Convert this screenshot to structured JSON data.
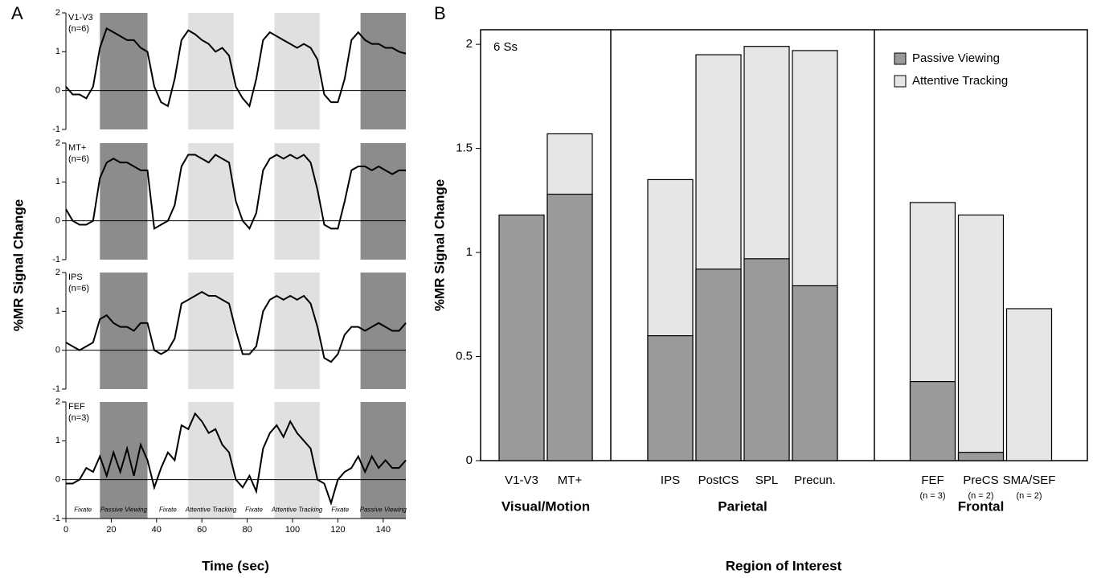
{
  "chart_data": [
    {
      "type": "line",
      "panel_label": "A",
      "xlabel": "Time (sec)",
      "ylabel": "%MR Signal Change",
      "color": "#000000",
      "x": [
        0,
        3,
        6,
        9,
        12,
        15,
        18,
        21,
        24,
        27,
        30,
        33,
        36,
        39,
        42,
        45,
        48,
        51,
        54,
        57,
        60,
        63,
        66,
        69,
        72,
        75,
        78,
        81,
        84,
        87,
        90,
        93,
        96,
        99,
        102,
        105,
        108,
        111,
        114,
        117,
        120,
        123,
        126,
        129,
        132,
        135,
        138,
        141,
        144,
        147,
        150
      ],
      "xlim": [
        0,
        150
      ],
      "xticks": [
        0,
        20,
        40,
        60,
        80,
        100,
        120,
        140
      ],
      "ylim": [
        -1,
        2
      ],
      "yticks": [
        -1,
        0,
        1,
        2
      ],
      "epochs": [
        {
          "start": 0,
          "end": 15,
          "label": "Fixate",
          "shade": null
        },
        {
          "start": 15,
          "end": 36,
          "label": "Passive Viewing",
          "shade": "#8c8c8c"
        },
        {
          "start": 36,
          "end": 54,
          "label": "Fixate",
          "shade": null
        },
        {
          "start": 54,
          "end": 74,
          "label": "Attentive Tracking",
          "shade": "#e0e0e0"
        },
        {
          "start": 74,
          "end": 92,
          "label": "Fixate",
          "shade": null
        },
        {
          "start": 92,
          "end": 112,
          "label": "Attentive Tracking",
          "shade": "#e0e0e0"
        },
        {
          "start": 112,
          "end": 130,
          "label": "Fixate",
          "shade": null
        },
        {
          "start": 130,
          "end": 150,
          "label": "Passive Viewing",
          "shade": "#8c8c8c"
        }
      ],
      "panels": [
        {
          "name": "V1-V3",
          "n": "(n=6)",
          "values": [
            0.1,
            -0.1,
            -0.1,
            -0.2,
            0.1,
            1.1,
            1.6,
            1.5,
            1.4,
            1.3,
            1.3,
            1.1,
            1.0,
            0.1,
            -0.3,
            -0.4,
            0.3,
            1.3,
            1.55,
            1.45,
            1.3,
            1.2,
            1.0,
            1.1,
            0.9,
            0.1,
            -0.2,
            -0.4,
            0.3,
            1.3,
            1.5,
            1.4,
            1.3,
            1.2,
            1.1,
            1.2,
            1.1,
            0.8,
            -0.1,
            -0.3,
            -0.3,
            0.3,
            1.3,
            1.5,
            1.3,
            1.2,
            1.2,
            1.1,
            1.1,
            1.0,
            0.95
          ]
        },
        {
          "name": "MT+",
          "n": "(n=6)",
          "values": [
            0.3,
            0.0,
            -0.1,
            -0.1,
            0.0,
            1.1,
            1.5,
            1.6,
            1.5,
            1.5,
            1.4,
            1.3,
            1.3,
            -0.2,
            -0.1,
            0.0,
            0.4,
            1.4,
            1.7,
            1.7,
            1.6,
            1.5,
            1.7,
            1.6,
            1.5,
            0.5,
            0.0,
            -0.2,
            0.2,
            1.3,
            1.6,
            1.7,
            1.6,
            1.7,
            1.6,
            1.7,
            1.5,
            0.8,
            -0.1,
            -0.2,
            -0.2,
            0.5,
            1.3,
            1.4,
            1.4,
            1.3,
            1.4,
            1.3,
            1.2,
            1.3,
            1.3
          ]
        },
        {
          "name": "IPS",
          "n": "(n=6)",
          "values": [
            0.2,
            0.1,
            0.0,
            0.1,
            0.2,
            0.8,
            0.9,
            0.7,
            0.6,
            0.6,
            0.5,
            0.7,
            0.7,
            0.0,
            -0.1,
            0.0,
            0.3,
            1.2,
            1.3,
            1.4,
            1.5,
            1.4,
            1.4,
            1.3,
            1.2,
            0.5,
            -0.1,
            -0.1,
            0.1,
            1.0,
            1.3,
            1.4,
            1.3,
            1.4,
            1.3,
            1.4,
            1.2,
            0.6,
            -0.2,
            -0.3,
            -0.1,
            0.4,
            0.6,
            0.6,
            0.5,
            0.6,
            0.7,
            0.6,
            0.5,
            0.5,
            0.7
          ]
        },
        {
          "name": "FEF",
          "n": "(n=3)",
          "values": [
            -0.1,
            -0.1,
            0.0,
            0.3,
            0.2,
            0.6,
            0.1,
            0.7,
            0.2,
            0.8,
            0.1,
            0.9,
            0.5,
            -0.2,
            0.3,
            0.7,
            0.5,
            1.4,
            1.3,
            1.7,
            1.5,
            1.2,
            1.3,
            0.9,
            0.7,
            0.0,
            -0.2,
            0.1,
            -0.3,
            0.8,
            1.2,
            1.4,
            1.1,
            1.5,
            1.2,
            1.0,
            0.8,
            0.0,
            -0.1,
            -0.6,
            0.0,
            0.2,
            0.3,
            0.6,
            0.2,
            0.6,
            0.3,
            0.5,
            0.3,
            0.3,
            0.5
          ]
        }
      ]
    },
    {
      "type": "bar",
      "bar_mode": "overlap",
      "panel_label": "B",
      "xlabel": "Region of Interest",
      "ylabel": "%MR Signal Change",
      "annotation": "6 Ss",
      "legend": "upper right",
      "groups": [
        {
          "label": "Visual/Motion",
          "categories": [
            "V1-V3",
            "MT+"
          ]
        },
        {
          "label": "Parietal",
          "categories": [
            "IPS",
            "PostCS",
            "SPL",
            "Precun."
          ]
        },
        {
          "label": "Frontal",
          "categories": [
            "FEF",
            "PreCS",
            "SMA/SEF"
          ]
        }
      ],
      "category_notes": [
        null,
        null,
        null,
        null,
        null,
        null,
        "(n = 3)",
        "(n = 2)",
        "(n = 2)"
      ],
      "series": [
        {
          "name": "Attentive Tracking",
          "color": "#e6e6e6",
          "values": [
            null,
            1.57,
            1.35,
            1.95,
            1.99,
            1.97,
            1.24,
            1.18,
            0.73
          ]
        },
        {
          "name": "Passive Viewing",
          "color": "#9a9a9a",
          "values": [
            1.18,
            1.28,
            0.6,
            0.92,
            0.97,
            0.84,
            0.38,
            0.04,
            null
          ]
        }
      ],
      "ylim": [
        0,
        2.07
      ],
      "yticks": [
        0,
        0.5,
        1,
        1.5,
        2
      ]
    }
  ]
}
